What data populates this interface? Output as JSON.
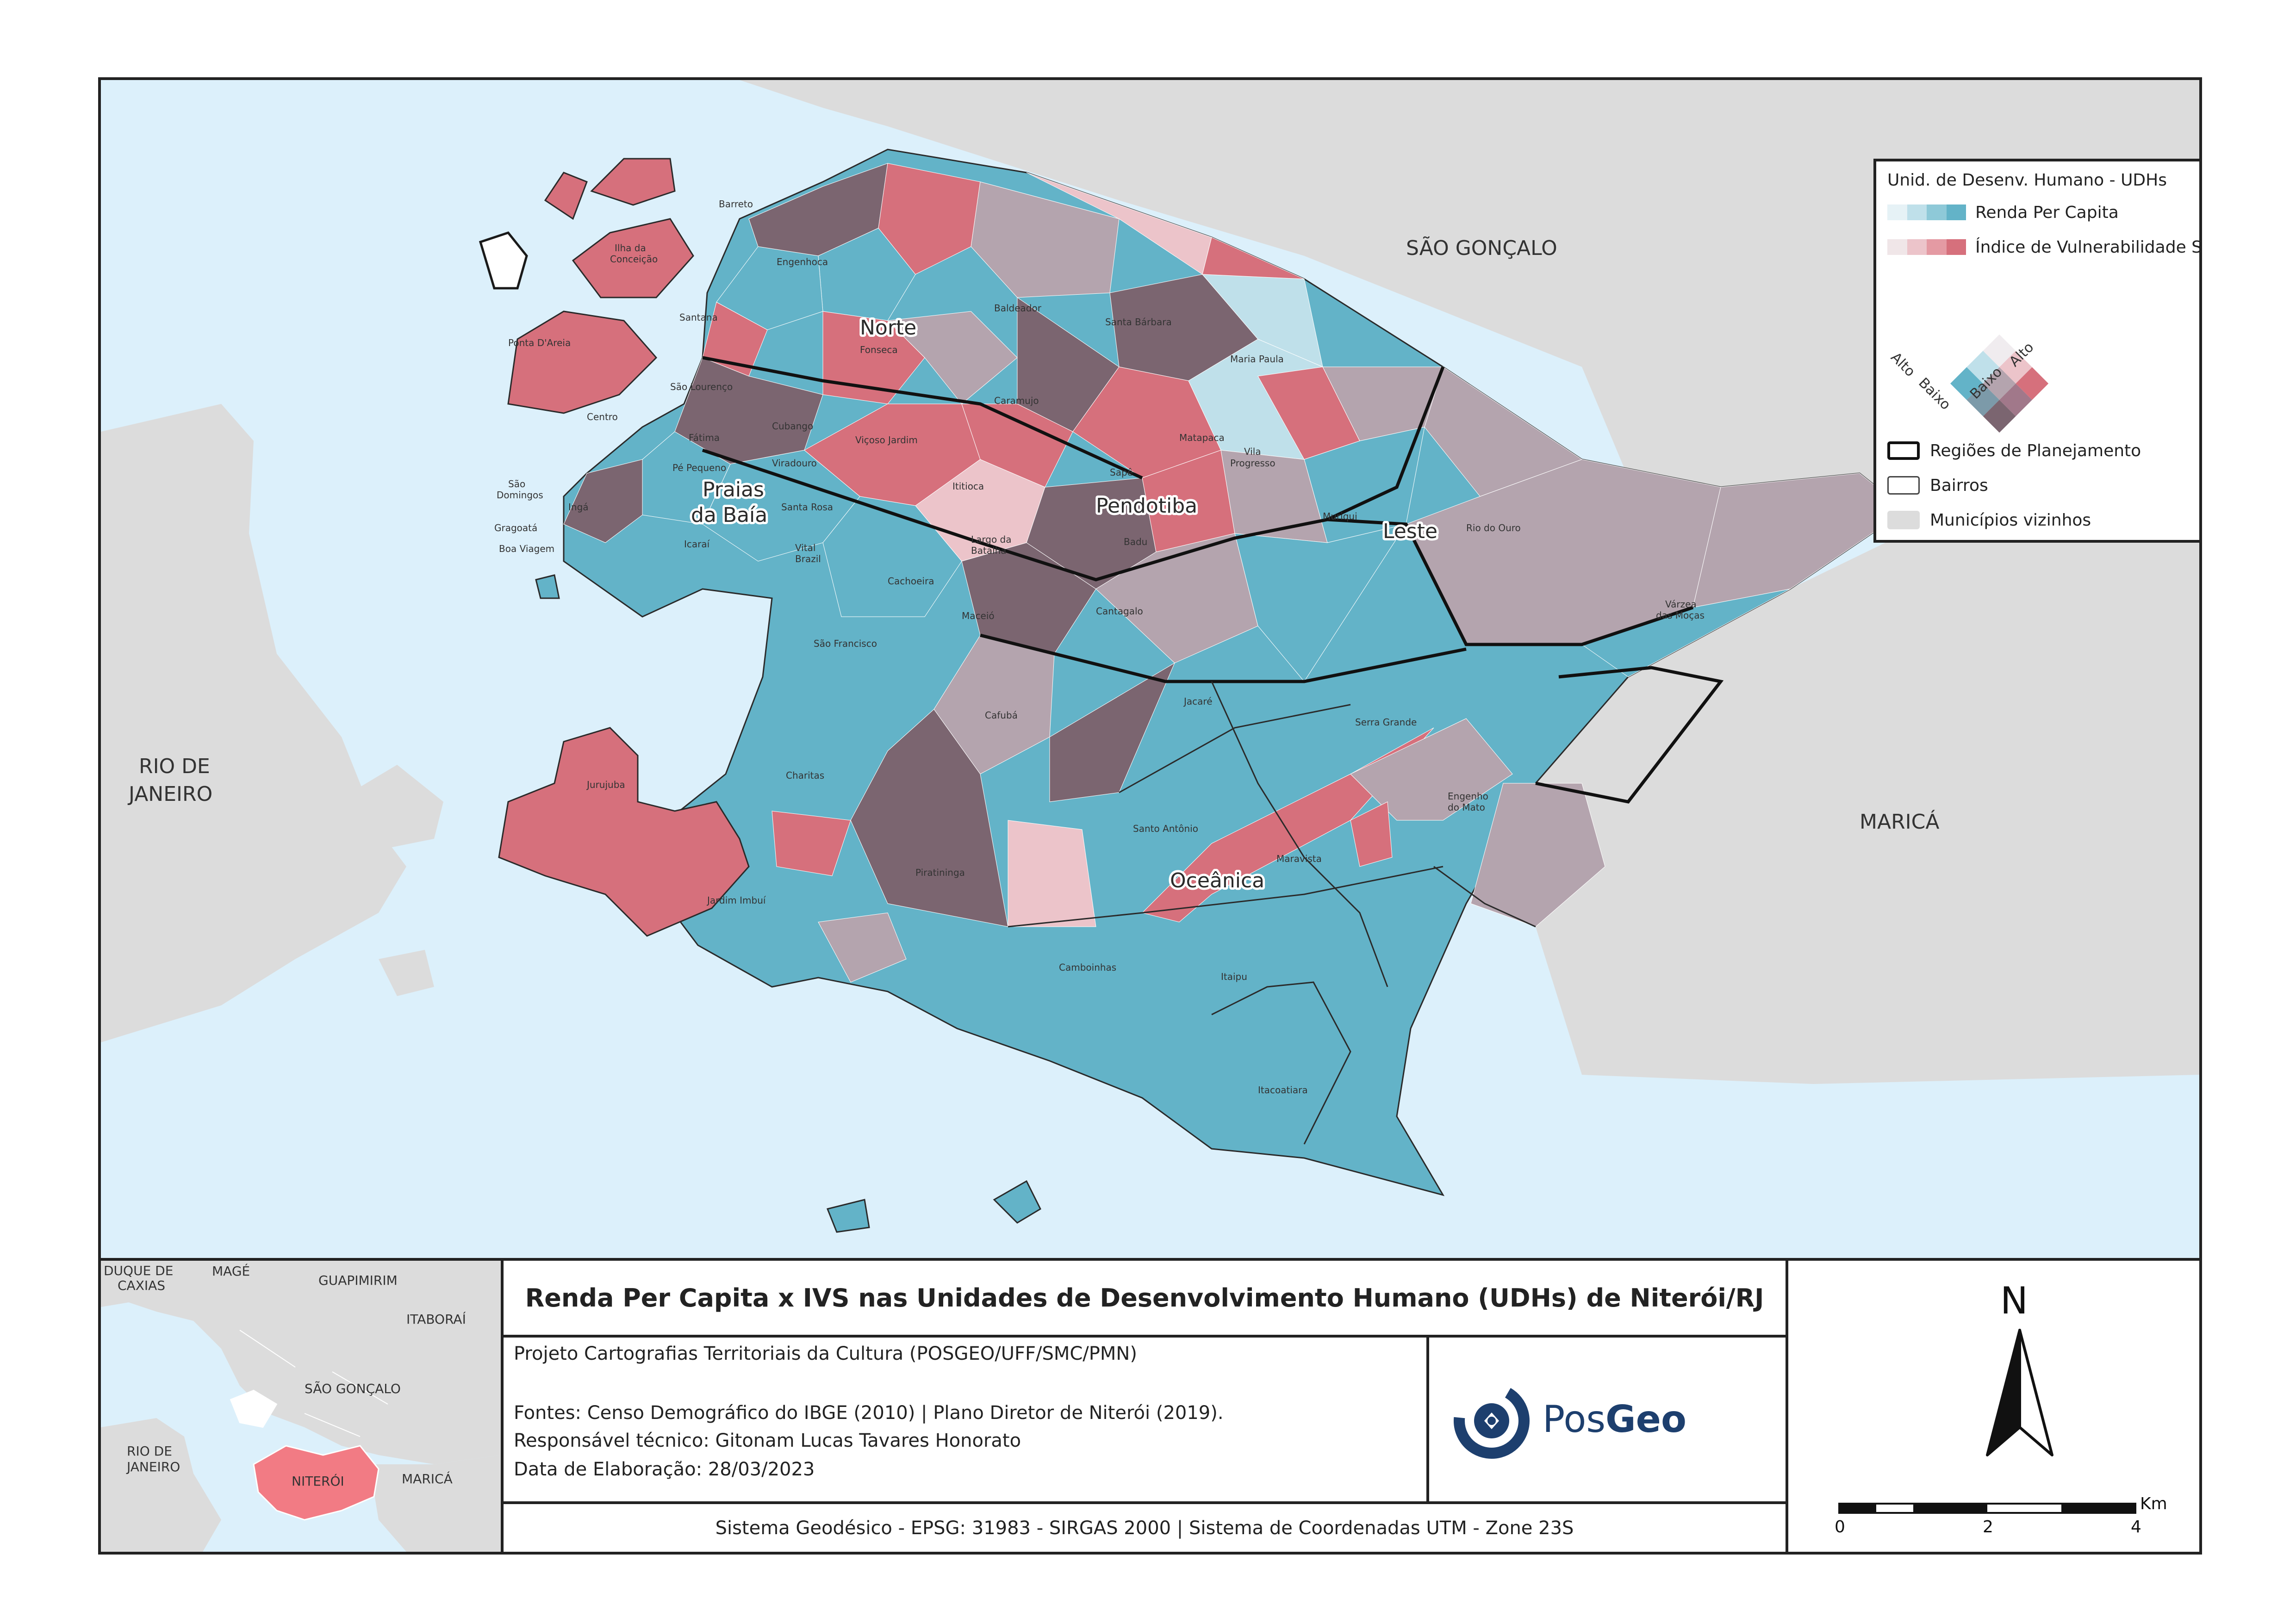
{
  "map": {
    "municipalities": {
      "sao_goncalo": "SÃO GONÇALO",
      "rio_de_janeiro_line1": "RIO DE",
      "rio_de_janeiro_line2": "JANEIRO",
      "marica": "MARICÁ"
    },
    "regions": {
      "norte": "Norte",
      "praias_line1": "Praias",
      "praias_line2": "da Baía",
      "pendotiba": "Pendotiba",
      "leste": "Leste",
      "oceanica": "Oceânica"
    },
    "bairros": {
      "barreto": "Barreto",
      "engenhoca": "Engenhoca",
      "ilha_line1": "Ilha da",
      "ilha_line2": "Conceição",
      "santana": "Santana",
      "baldeador": "Baldeador",
      "santa_barbara": "Santa Bárbara",
      "ponta_dareia": "Ponta D'Areia",
      "sao_lourenco": "São Lourenço",
      "fonseca": "Fonseca",
      "maria_paula": "Maria Paula",
      "caramujo": "Caramujo",
      "centro": "Centro",
      "cubango": "Cubango",
      "viçoso_jardim": "Viçoso Jardim",
      "fatima": "Fátima",
      "matapaca": "Matapaca",
      "vila_progresso_line1": "Vila",
      "vila_progresso_line2": "Progresso",
      "sape": "Sapê",
      "ititioca": "Ititioca",
      "muriqui": "Muriqui",
      "rio_do_ouro": "Rio do Ouro",
      "sao_domingos_line1": "São",
      "sao_domingos_line2": "Domingos",
      "inga": "Ingá",
      "icarai": "Icaraí",
      "santa_rosa": "Santa Rosa",
      "viradouro": "Viradouro",
      "largo_line1": "Largo da",
      "largo_line2": "Batalha",
      "badu": "Badu",
      "boa_viagem": "Boa Viagem",
      "vital_brazil_line1": "Vital",
      "vital_brazil_line2": "Brazil",
      "cachoeira": "Cachoeira",
      "maceio": "Maceió",
      "cantagalo": "Cantagalo",
      "varzea_line1": "Várzea",
      "varzea_line2": "das Moças",
      "sao_francisco": "São Francisco",
      "jacare": "Jacaré",
      "cafuba": "Cafubá",
      "serra_grande": "Serra Grande",
      "jurujuba": "Jurujuba",
      "charitas": "Charitas",
      "santo_antonio": "Santo Antônio",
      "engenho_line1": "Engenho",
      "engenho_line2": "do Mato",
      "maravista": "Maravista",
      "jardim_imbui": "Jardim Imbuí",
      "piratininga": "Piratininga",
      "camboinhas": "Camboinhas",
      "itaipu": "Itaipu",
      "itacoatiara": "Itacoatiara",
      "pe_pequeno": "Pé Pequeno",
      "gragoata": "Gragoatá"
    }
  },
  "legend": {
    "title": "Unid. de Desenv. Humano - UDHs",
    "renda_label": "Renda Per Capita",
    "ivs_label": "Índice de Vulnerabilidade Social - IVS",
    "renda_ramp": [
      "#e6f2f6",
      "#bfe0ea",
      "#8ec9d8",
      "#63b3c8"
    ],
    "ivs_ramp": [
      "#f0e6e8",
      "#ecc4ca",
      "#e49aa3",
      "#d6707c"
    ],
    "axis_left_high": "Alto",
    "axis_left_low": "Baixo",
    "axis_right_low": "Baixo",
    "axis_right_high": "Alto",
    "regioes_label": "Regiões de Planejamento",
    "bairros_label": "Bairros",
    "municipios_label": "Municípios vizinhos"
  },
  "bivariate_colors": {
    "high_high": "#7b6570",
    "high_renda": "#63b3c8",
    "high_ivs": "#d6707c",
    "mid": "#b4a4ae",
    "low_low": "#f0ecef",
    "neighbor": "#dcdcdc",
    "water": "#dcf0fb"
  },
  "inset": {
    "duque_line1": "DUQUE DE",
    "duque_line2": "CAXIAS",
    "mage": "MAGÉ",
    "guapimirim": "GUAPIMIRIM",
    "itaborai": "ITABORAÍ",
    "sao_goncalo": "SÃO GONÇALO",
    "rio_line1": "RIO DE",
    "rio_line2": "JANEIRO",
    "niteroi": "NITERÓI",
    "marica": "MARICÁ"
  },
  "title": "Renda Per Capita x IVS nas Unidades de Desenvolvimento Humano (UDHs) de Niterói/RJ",
  "info": {
    "project": "Projeto Cartografias Territoriais da Cultura (POSGEO/UFF/SMC/PMN)",
    "sources": "Fontes: Censo Demográfico do IBGE (2010) | Plano Diretor de Niterói (2019).",
    "responsible": "Responsável técnico: Gitonam Lucas Tavares Honorato",
    "date": "Data de Elaboração: 28/03/2023"
  },
  "logo": {
    "text_regular": "Pos",
    "text_bold": "Geo",
    "color": "#1d3f6e"
  },
  "crs": "Sistema Geodésico - EPSG: 31983 - SIRGAS 2000 | Sistema de Coordenadas UTM - Zone 23S",
  "north": "N",
  "scale": {
    "unit": "Km",
    "ticks": [
      "0",
      "2",
      "4"
    ]
  }
}
